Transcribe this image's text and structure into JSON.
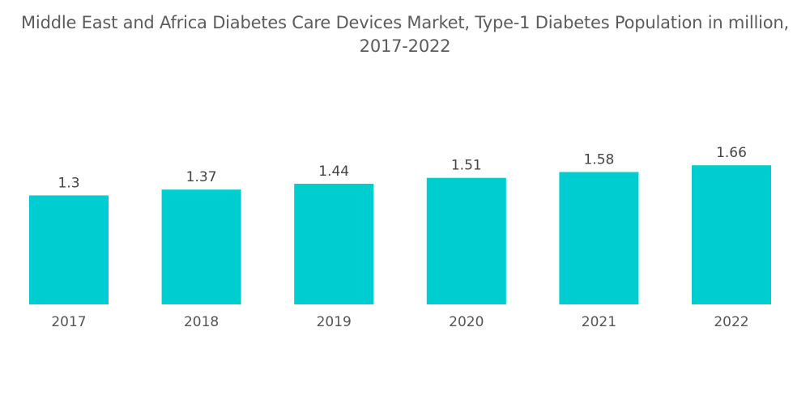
{
  "chart_data": {
    "type": "bar",
    "title_line1": "Middle East and Africa Diabetes Care Devices Market, Type-1 Diabetes Population in million,",
    "title_line2": "2017-2022",
    "categories": [
      "2017",
      "2018",
      "2019",
      "2020",
      "2021",
      "2022"
    ],
    "values": [
      1.3,
      1.37,
      1.44,
      1.51,
      1.58,
      1.66
    ],
    "data_labels": [
      "1.3",
      "1.37",
      "1.44",
      "1.51",
      "1.58",
      "1.66"
    ],
    "xlabel": "",
    "ylabel": "",
    "ylim": [
      0,
      1.66
    ],
    "grid": false,
    "legend": "none",
    "bar_color": "#00cdd0"
  }
}
